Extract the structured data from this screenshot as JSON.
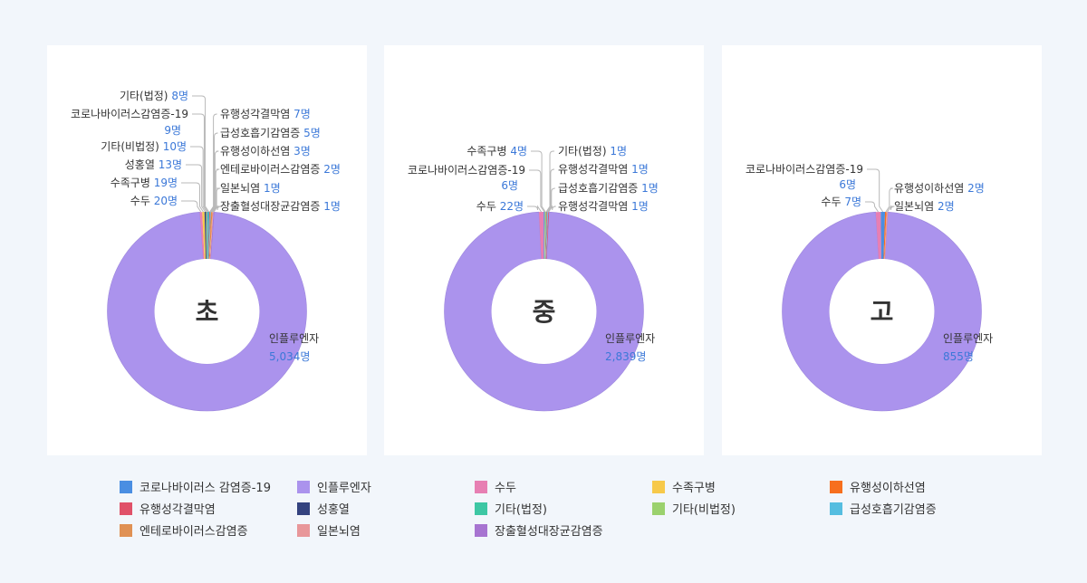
{
  "chart_data": [
    {
      "type": "pie",
      "center_label": "초",
      "slices": [
        {
          "label": "인플루엔자",
          "value": "5,034명",
          "num": 5034,
          "color": "#ab93ed"
        },
        {
          "label": "수두",
          "value": "20명",
          "num": 20,
          "color": "#e77fb3"
        },
        {
          "label": "수족구병",
          "value": "19명",
          "num": 19,
          "color": "#f7c94a"
        },
        {
          "label": "성홍열",
          "value": "13명",
          "num": 13,
          "color": "#34437f"
        },
        {
          "label": "기타(비법정)",
          "value": "10명",
          "num": 10,
          "color": "#9bd16d"
        },
        {
          "label": "코로나바이러스감염증-19",
          "value": "9명",
          "num": 9,
          "color": "#4a8ee2"
        },
        {
          "label": "기타(법정)",
          "value": "8명",
          "num": 8,
          "color": "#3ec7a4"
        },
        {
          "label": "유행성각결막염",
          "value": "7명",
          "num": 7,
          "color": "#e05169"
        },
        {
          "label": "급성호흡기감염증",
          "value": "5명",
          "num": 5,
          "color": "#55bde0"
        },
        {
          "label": "유행성이하선염",
          "value": "3명",
          "num": 3,
          "color": "#f76f1e"
        },
        {
          "label": "엔테로바이러스감염증",
          "value": "2명",
          "num": 2,
          "color": "#e09154"
        },
        {
          "label": "일본뇌염",
          "value": "1명",
          "num": 1,
          "color": "#e8979a"
        },
        {
          "label": "장출혈성대장균감염증",
          "value": "1명",
          "num": 1,
          "color": "#a774d1"
        }
      ]
    },
    {
      "type": "pie",
      "center_label": "중",
      "slices": [
        {
          "label": "인플루엔자",
          "value": "2,839명",
          "num": 2839,
          "color": "#ab93ed"
        },
        {
          "label": "수두",
          "value": "22명",
          "num": 22,
          "color": "#e77fb3"
        },
        {
          "label": "코로나바이러스감염증-19",
          "value": "6명",
          "num": 6,
          "color": "#4a8ee2"
        },
        {
          "label": "수족구병",
          "value": "4명",
          "num": 4,
          "color": "#f7c94a"
        },
        {
          "label": "기타(법정)",
          "value": "1명",
          "num": 1,
          "color": "#3ec7a4"
        },
        {
          "label": "유행성각결막염",
          "value": "1명",
          "num": 1,
          "color": "#e05169"
        },
        {
          "label": "급성호흡기감염증",
          "value": "1명",
          "num": 1,
          "color": "#55bde0"
        },
        {
          "label": "유행성각결막염",
          "value": "1명",
          "num": 1,
          "color": "#e05169"
        }
      ]
    },
    {
      "type": "pie",
      "center_label": "고",
      "slices": [
        {
          "label": "인플루엔자",
          "value": "855명",
          "num": 855,
          "color": "#ab93ed"
        },
        {
          "label": "수두",
          "value": "7명",
          "num": 7,
          "color": "#e77fb3"
        },
        {
          "label": "코로나바이러스감염증-19",
          "value": "6명",
          "num": 6,
          "color": "#4a8ee2"
        },
        {
          "label": "유행성이하선염",
          "value": "2명",
          "num": 2,
          "color": "#f76f1e"
        },
        {
          "label": "일본뇌염",
          "value": "2명",
          "num": 2,
          "color": "#e8979a"
        }
      ]
    }
  ],
  "legend": [
    {
      "label": "코로나바이러스 감염증-19",
      "color": "#4a8ee2"
    },
    {
      "label": "인플루엔자",
      "color": "#ab93ed"
    },
    {
      "label": "수두",
      "color": "#e77fb3"
    },
    {
      "label": "수족구병",
      "color": "#f7c94a"
    },
    {
      "label": "유행성이하선염",
      "color": "#f76f1e"
    },
    {
      "label": "유행성각결막염",
      "color": "#e05169"
    },
    {
      "label": "성홍열",
      "color": "#34437f"
    },
    {
      "label": "기타(법정)",
      "color": "#3ec7a4"
    },
    {
      "label": "기타(비법정)",
      "color": "#9bd16d"
    },
    {
      "label": "급성호흡기감염증",
      "color": "#55bde0"
    },
    {
      "label": "엔테로바이러스감염증",
      "color": "#e09154"
    },
    {
      "label": "일본뇌염",
      "color": "#e8979a"
    },
    {
      "label": "장출혈성대장균감염증",
      "color": "#a774d1"
    }
  ]
}
